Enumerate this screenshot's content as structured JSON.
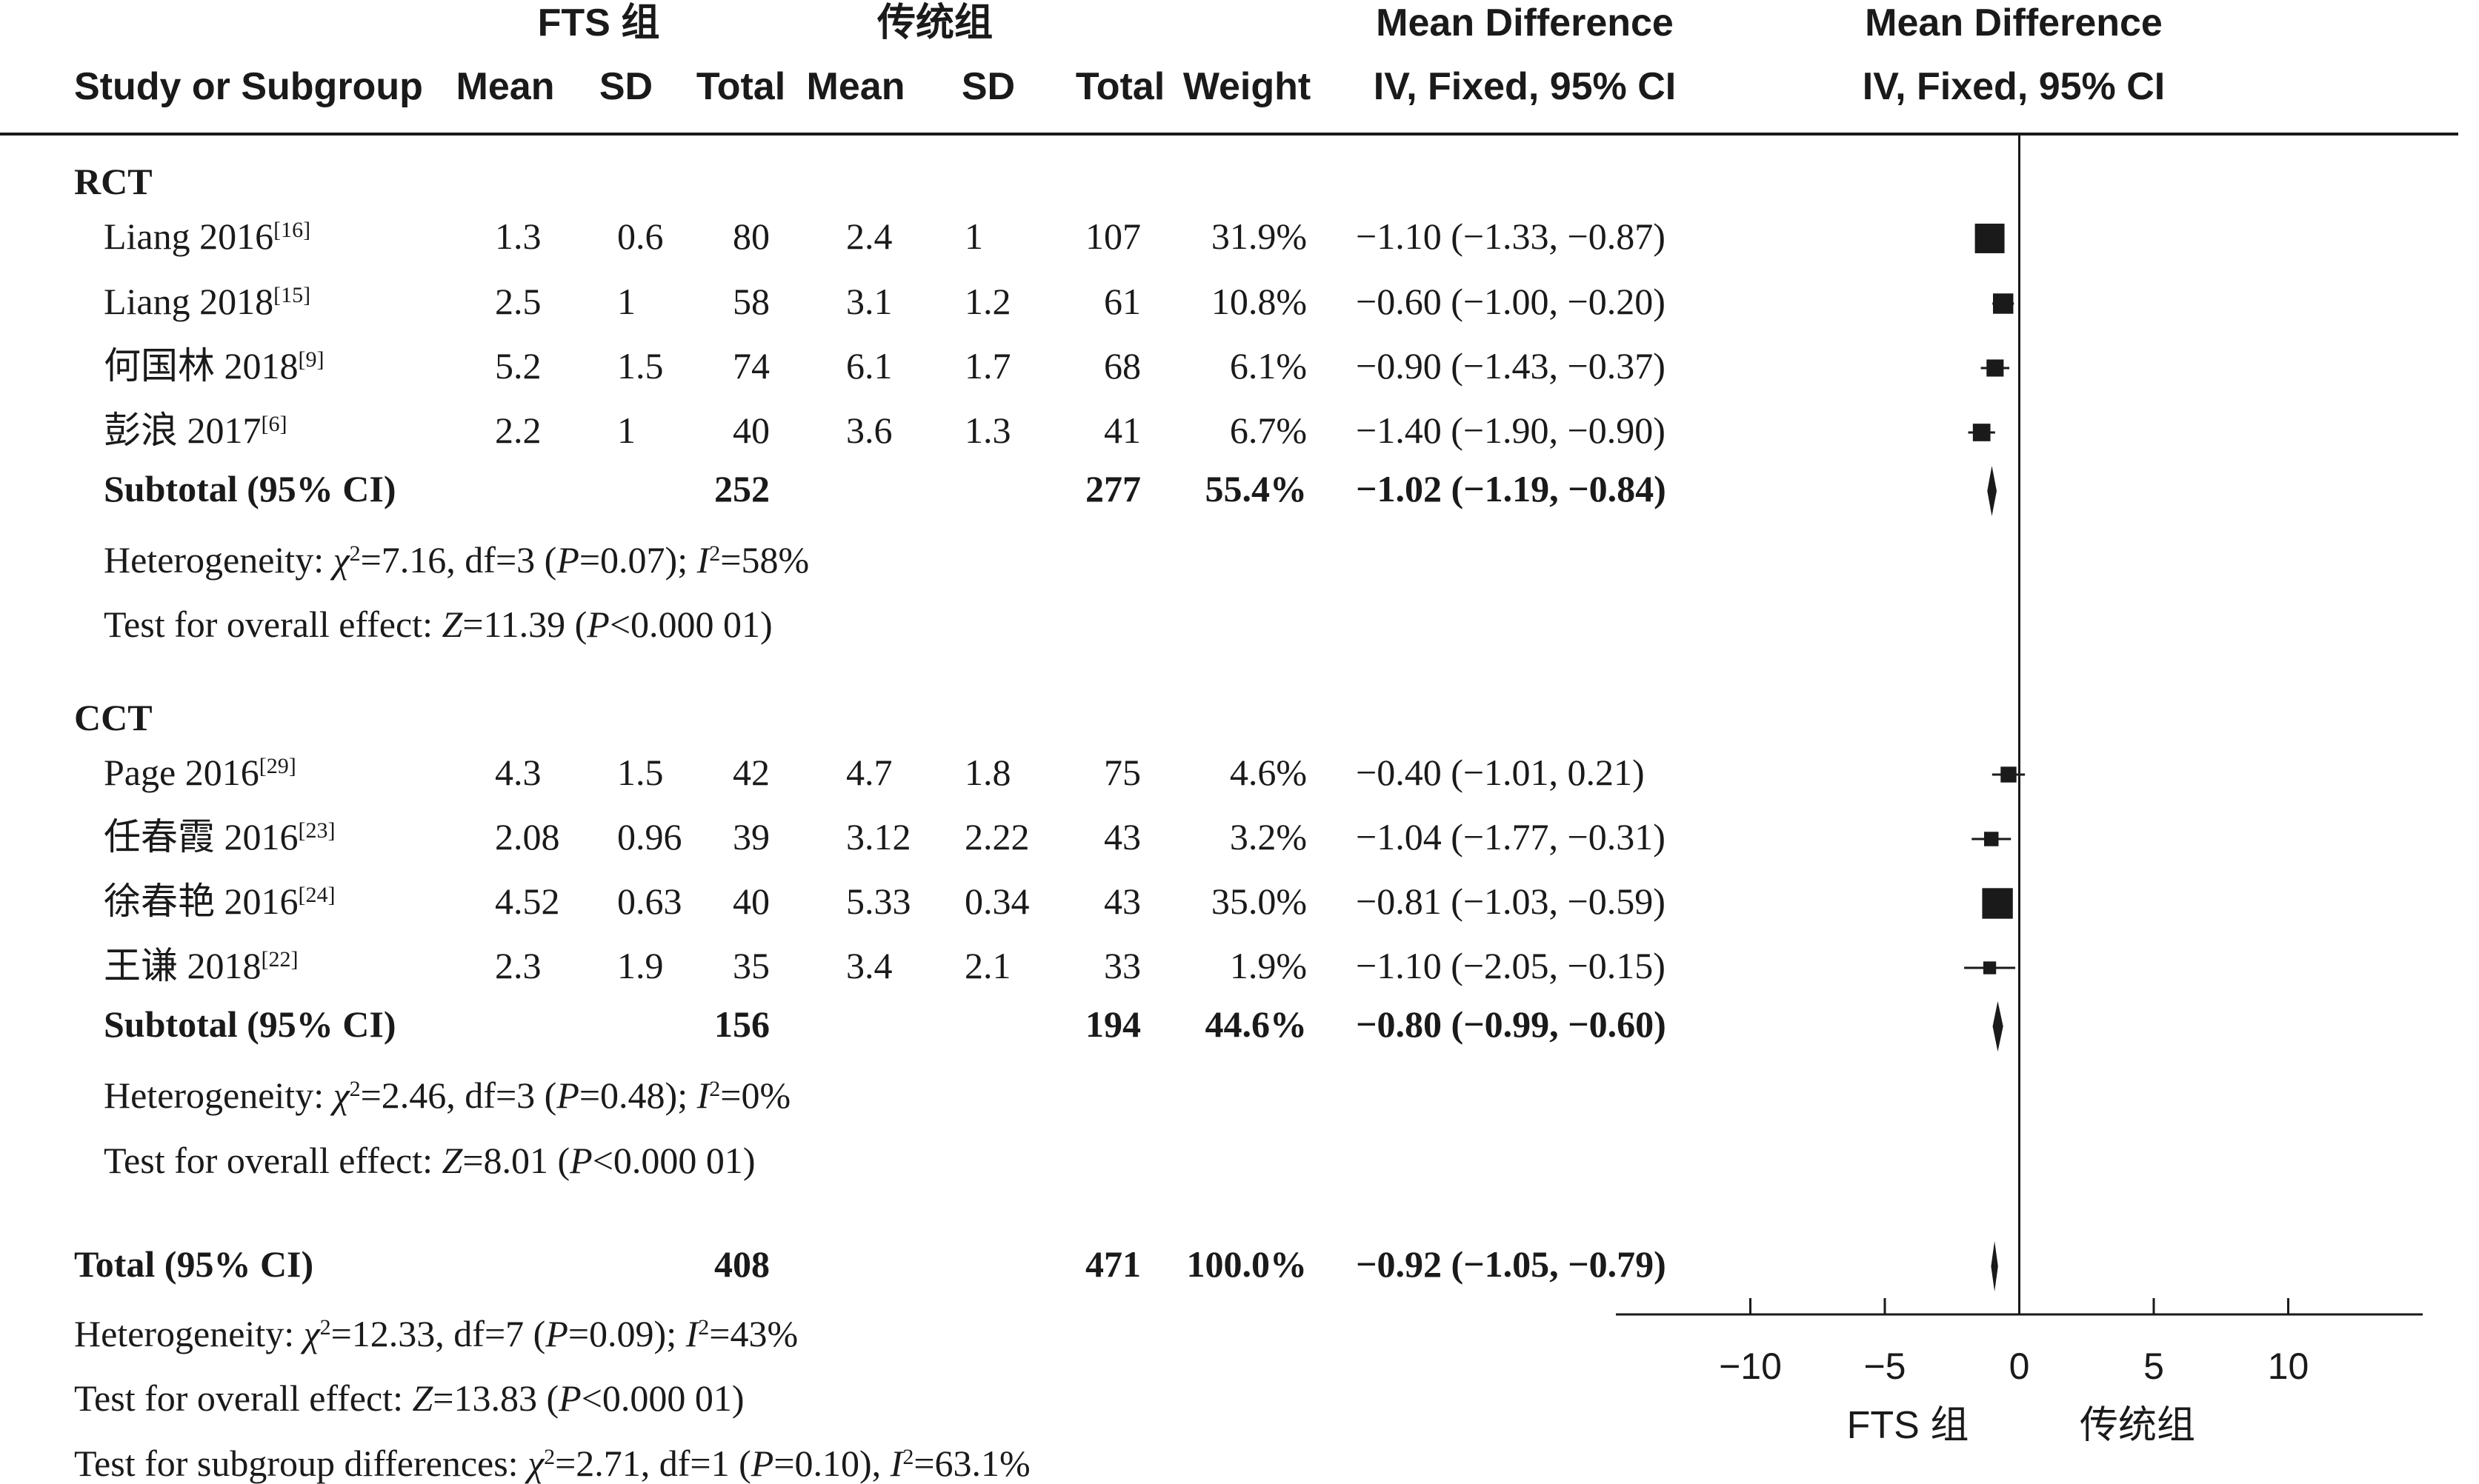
{
  "chart_data": {
    "type": "forest",
    "headers": {
      "group1": "FTS 组",
      "group2": "传统组",
      "study": "Study or Subgroup",
      "mean1": "Mean",
      "sd1": "SD",
      "total1": "Total",
      "mean2": "Mean",
      "sd2": "SD",
      "total2": "Total",
      "weight": "Weight",
      "md_col_title": "Mean Difference",
      "md_col_sub": "IV, Fixed, 95% CI",
      "plot_title": "Mean Difference",
      "plot_sub": "IV, Fixed, 95% CI"
    },
    "subgroups": [
      {
        "label": "RCT",
        "studies": [
          {
            "name": "Liang 2016",
            "ref": "[16]",
            "m1": "1.3",
            "sd1": "0.6",
            "n1": "80",
            "m2": "2.4",
            "sd2": "1",
            "n2": "107",
            "weight": "31.9%",
            "ci_text": "−1.10 (−1.33, −0.87)",
            "md": -1.1,
            "lo": -1.33,
            "hi": -0.87,
            "w": 31.9
          },
          {
            "name": "Liang 2018",
            "ref": "[15]",
            "m1": "2.5",
            "sd1": "1",
            "n1": "58",
            "m2": "3.1",
            "sd2": "1.2",
            "n2": "61",
            "weight": "10.8%",
            "ci_text": "−0.60 (−1.00, −0.20)",
            "md": -0.6,
            "lo": -1.0,
            "hi": -0.2,
            "w": 10.8
          },
          {
            "name": "何国林 2018",
            "ref": "[9]",
            "m1": "5.2",
            "sd1": "1.5",
            "n1": "74",
            "m2": "6.1",
            "sd2": "1.7",
            "n2": "68",
            "weight": "6.1%",
            "ci_text": "−0.90 (−1.43, −0.37)",
            "md": -0.9,
            "lo": -1.43,
            "hi": -0.37,
            "w": 6.1
          },
          {
            "name": "彭浪 2017",
            "ref": "[6]",
            "m1": "2.2",
            "sd1": "1",
            "n1": "40",
            "m2": "3.6",
            "sd2": "1.3",
            "n2": "41",
            "weight": "6.7%",
            "ci_text": "−1.40 (−1.90, −0.90)",
            "md": -1.4,
            "lo": -1.9,
            "hi": -0.9,
            "w": 6.7
          }
        ],
        "subtotal": {
          "label": "Subtotal (95% CI)",
          "n1": "252",
          "n2": "277",
          "weight": "55.4%",
          "ci_text": "−1.02 (−1.19, −0.84)",
          "md": -1.02,
          "lo": -1.19,
          "hi": -0.84
        },
        "heterogeneity": {
          "prefix": "Heterogeneity: ",
          "chi": "χ",
          "chi_val": "=7.16, df=3 (",
          "p": "P",
          "p_val": "=0.07); ",
          "i": "I",
          "i_val": "=58%"
        },
        "overall": {
          "prefix": "Test for overall effect: ",
          "z": "Z",
          "z_val": "=11.39 (",
          "p": "P",
          "p_val": "<0.000 01)"
        }
      },
      {
        "label": "CCT",
        "studies": [
          {
            "name": "Page 2016",
            "ref": "[29]",
            "m1": "4.3",
            "sd1": "1.5",
            "n1": "42",
            "m2": "4.7",
            "sd2": "1.8",
            "n2": "75",
            "weight": "4.6%",
            "ci_text": "−0.40 (−1.01, 0.21)",
            "md": -0.4,
            "lo": -1.01,
            "hi": 0.21,
            "w": 4.6
          },
          {
            "name": "任春霞 2016",
            "ref": "[23]",
            "m1": "2.08",
            "sd1": "0.96",
            "n1": "39",
            "m2": "3.12",
            "sd2": "2.22",
            "n2": "43",
            "weight": "3.2%",
            "ci_text": "−1.04 (−1.77, −0.31)",
            "md": -1.04,
            "lo": -1.77,
            "hi": -0.31,
            "w": 3.2
          },
          {
            "name": "徐春艳 2016",
            "ref": "[24]",
            "m1": "4.52",
            "sd1": "0.63",
            "n1": "40",
            "m2": "5.33",
            "sd2": "0.34",
            "n2": "43",
            "weight": "35.0%",
            "ci_text": "−0.81 (−1.03, −0.59)",
            "md": -0.81,
            "lo": -1.03,
            "hi": -0.59,
            "w": 35.0
          },
          {
            "name": "王谦 2018",
            "ref": "[22]",
            "m1": "2.3",
            "sd1": "1.9",
            "n1": "35",
            "m2": "3.4",
            "sd2": "2.1",
            "n2": "33",
            "weight": "1.9%",
            "ci_text": "−1.10 (−2.05, −0.15)",
            "md": -1.1,
            "lo": -2.05,
            "hi": -0.15,
            "w": 1.9
          }
        ],
        "subtotal": {
          "label": "Subtotal (95% CI)",
          "n1": "156",
          "n2": "194",
          "weight": "44.6%",
          "ci_text": "−0.80 (−0.99, −0.60)",
          "md": -0.8,
          "lo": -0.99,
          "hi": -0.6
        },
        "heterogeneity": {
          "prefix": "Heterogeneity: ",
          "chi": "χ",
          "chi_val": "=2.46, df=3 (",
          "p": "P",
          "p_val": "=0.48); ",
          "i": "I",
          "i_val": "=0%"
        },
        "overall": {
          "prefix": "Test for overall effect: ",
          "z": "Z",
          "z_val": "=8.01 (",
          "p": "P",
          "p_val": "<0.000 01)"
        }
      }
    ],
    "total": {
      "label": "Total (95% CI)",
      "n1": "408",
      "n2": "471",
      "weight": "100.0%",
      "ci_text": "−0.92 (−1.05, −0.79)",
      "md": -0.92,
      "lo": -1.05,
      "hi": -0.79
    },
    "footer": {
      "heterogeneity": {
        "prefix": "Heterogeneity: ",
        "chi": "χ",
        "chi_val": "=12.33, df=7 (",
        "p": "P",
        "p_val": "=0.09); ",
        "i": "I",
        "i_val": "=43%"
      },
      "overall": {
        "prefix": "Test for overall effect: ",
        "z": "Z",
        "z_val": "=13.83 (",
        "p": "P",
        "p_val": "<0.000 01)"
      },
      "subgroup": {
        "prefix": "Test for subgroup differences: ",
        "chi": "χ",
        "chi_val": "=2.71, df=1 (",
        "p": "P",
        "p_val": "=0.10), ",
        "i": "I",
        "i_val": "=63.1%"
      }
    },
    "axis": {
      "xlim": [
        -15,
        15
      ],
      "ticks": [
        -10,
        -5,
        0,
        5,
        10
      ],
      "tick_labels": [
        "−10",
        "−5",
        "0",
        "5",
        "10"
      ],
      "favours_left": "FTS 组",
      "favours_right": "传统组"
    }
  }
}
